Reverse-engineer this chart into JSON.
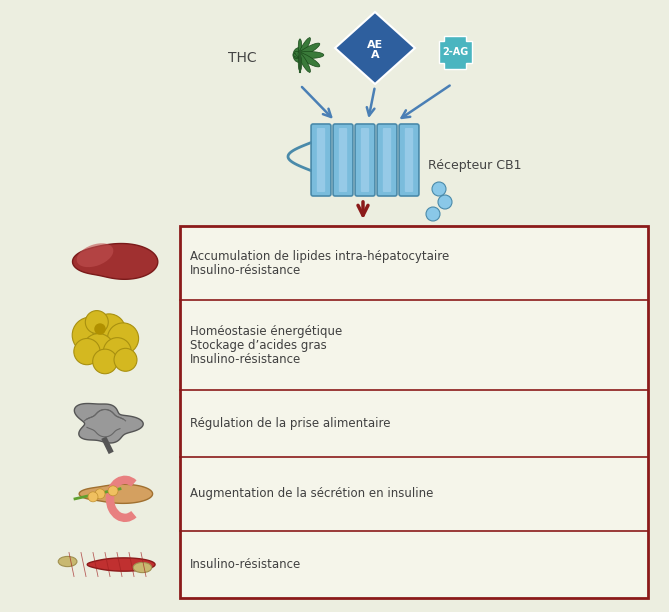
{
  "bg_color": "#eceee0",
  "box_border_color": "#8b1a1a",
  "box_fill_color": "#f5f5ea",
  "arrow_color": "#4a7fb5",
  "red_arrow_color": "#8b1a1a",
  "thc_label": "THC",
  "aea_label": "AE\nA",
  "ag_label": "2-AG",
  "receptor_label": "Récepteur CB1",
  "diamond_color": "#2e5f9e",
  "cross_color": "#4ab5c0",
  "receptor_color": "#7abcdc",
  "receptor_dark": "#4a8aaa",
  "leaf_color": "#3a7a3a",
  "rows": [
    {
      "lines": [
        "Accumulation de lipides intra-hépatocytaire",
        "Insulino-résistance"
      ],
      "prop": 0.2
    },
    {
      "lines": [
        "Homéostasie énergétique",
        "Stockage d’acides gras",
        "Insulino-résistance"
      ],
      "prop": 0.24
    },
    {
      "lines": [
        "Régulation de la prise alimentaire"
      ],
      "prop": 0.18
    },
    {
      "lines": [
        "Augmentation de la sécrétion en insuline"
      ],
      "prop": 0.2
    },
    {
      "lines": [
        "Insulino-résistance"
      ],
      "prop": 0.18
    }
  ],
  "text_color": "#404040",
  "label_fontsize": 8.5,
  "figsize": [
    6.69,
    6.12
  ],
  "dpi": 100
}
